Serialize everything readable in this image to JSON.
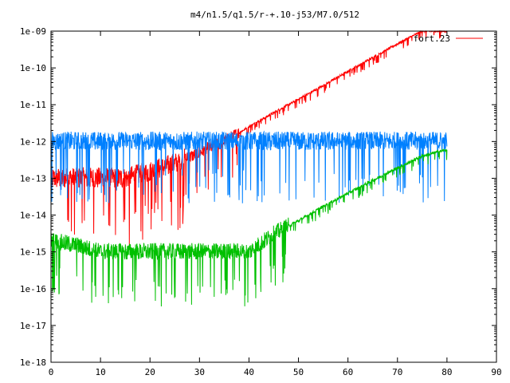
{
  "chart_data": {
    "type": "line",
    "title": "m4/n1.5/q1.5/r-+.10-j53/M7.0/512",
    "xlabel": "",
    "ylabel": "",
    "xlim": [
      0,
      90
    ],
    "ylim": [
      1e-18,
      1e-09
    ],
    "yscale": "log",
    "x_ticks": [
      0,
      10,
      20,
      30,
      40,
      50,
      60,
      70,
      80,
      90
    ],
    "x_tick_labels": [
      "0",
      "10",
      "20",
      "30",
      "40",
      "50",
      "60",
      "70",
      "80",
      "90"
    ],
    "y_ticks": [
      1e-18,
      1e-17,
      1e-16,
      1e-15,
      1e-14,
      1e-13,
      1e-12,
      1e-11,
      1e-10,
      1e-09
    ],
    "y_tick_labels": [
      "1e-18",
      "1e-17",
      "1e-16",
      "1e-15",
      "1e-14",
      "1e-13",
      "1e-12",
      "1e-11",
      "1e-10",
      "1e-09"
    ],
    "grid": false,
    "legend_position": "top-right",
    "series": [
      {
        "name": "fort.23",
        "color": "#ff0000",
        "x": [
          0,
          5,
          10,
          15,
          20,
          25,
          30,
          35,
          40,
          45,
          50,
          55,
          60,
          65,
          70,
          75,
          80
        ],
        "y": [
          1e-13,
          1e-13,
          1e-13,
          1e-13,
          1.5e-13,
          2.5e-13,
          5e-13,
          1e-12,
          2.5e-12,
          6e-12,
          1.4e-11,
          3.3e-11,
          8e-11,
          1.9e-10,
          4.5e-10,
          1e-09,
          1e-09
        ]
      },
      {
        "color": "#0080ff",
        "x": [
          0,
          5,
          10,
          15,
          20,
          25,
          30,
          35,
          40,
          45,
          50,
          55,
          60,
          65,
          70,
          75,
          80
        ],
        "y": [
          1e-12,
          1e-12,
          1e-12,
          1e-12,
          1e-12,
          1e-12,
          1e-12,
          1e-12,
          1e-12,
          1e-12,
          1e-12,
          1e-12,
          1e-12,
          1e-12,
          1e-12,
          1e-12,
          1e-12
        ]
      },
      {
        "color": "#00c000",
        "x": [
          0,
          5,
          10,
          15,
          20,
          25,
          30,
          35,
          40,
          45,
          50,
          55,
          60,
          65,
          70,
          75,
          80
        ],
        "y": [
          2e-15,
          1.5e-15,
          1e-15,
          1e-15,
          1e-15,
          1e-15,
          1e-15,
          1e-15,
          1e-15,
          3e-15,
          7e-15,
          1.7e-14,
          3.9e-14,
          8.7e-14,
          1.9e-13,
          4e-13,
          6e-13
        ]
      }
    ]
  }
}
